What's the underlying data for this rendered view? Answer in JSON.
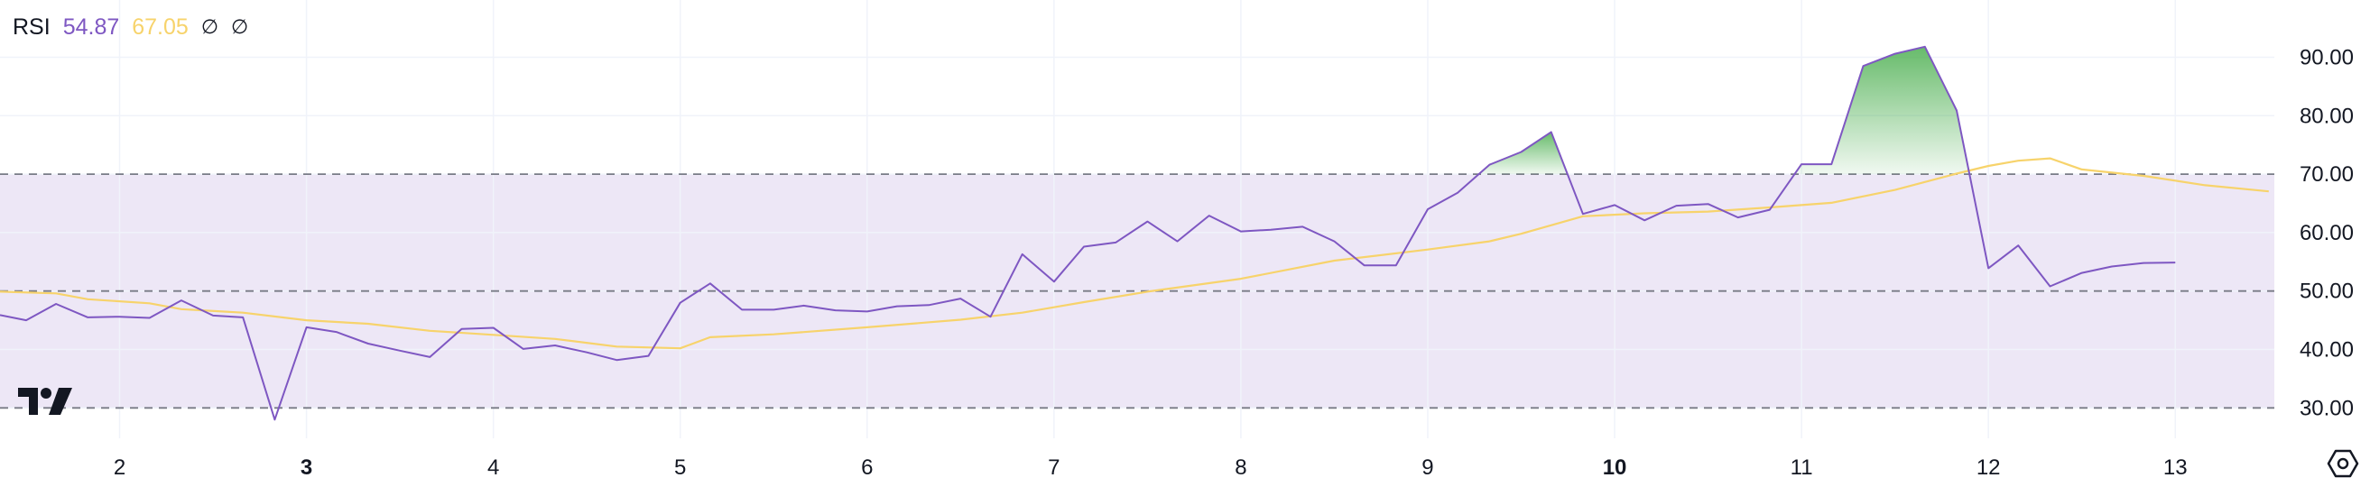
{
  "legend": {
    "name": "RSI",
    "rsi_value": "54.87",
    "ma_value": "67.05",
    "na1": "∅",
    "na2": "∅"
  },
  "icons": {
    "logo": "tradingview-logo-icon",
    "settings": "settings-icon"
  },
  "colors": {
    "rsi": "#7e57c2",
    "ma": "#f7d36b",
    "band": "#ede7f6",
    "overbought_fill": "#4caf50",
    "grid": "#f0f3fa",
    "dash": "#787b86"
  },
  "chart_data": {
    "type": "line",
    "title": "RSI",
    "ylim": [
      24.8,
      99.8
    ],
    "xlim": [
      1.36,
      13.53
    ],
    "y_ticks": [
      "30.00",
      "40.00",
      "50.00",
      "60.00",
      "70.00",
      "80.00",
      "90.00"
    ],
    "x_ticks": [
      {
        "label": "2",
        "x": 2,
        "bold": false
      },
      {
        "label": "3",
        "x": 3,
        "bold": true
      },
      {
        "label": "4",
        "x": 4,
        "bold": false
      },
      {
        "label": "5",
        "x": 5,
        "bold": false
      },
      {
        "label": "6",
        "x": 6,
        "bold": false
      },
      {
        "label": "7",
        "x": 7,
        "bold": false
      },
      {
        "label": "8",
        "x": 8,
        "bold": false
      },
      {
        "label": "9",
        "x": 9,
        "bold": false
      },
      {
        "label": "10",
        "x": 10,
        "bold": true
      },
      {
        "label": "11",
        "x": 11,
        "bold": false
      },
      {
        "label": "12",
        "x": 12,
        "bold": false
      },
      {
        "label": "13",
        "x": 13,
        "bold": false
      }
    ],
    "bands": {
      "upper": 70,
      "middle": 50,
      "lower": 30
    },
    "grid": true,
    "series": [
      {
        "key": "rsi",
        "color": "#7e57c2",
        "points": [
          [
            1.36,
            45.9
          ],
          [
            1.5,
            45.0
          ],
          [
            1.66,
            47.8
          ],
          [
            1.83,
            45.5
          ],
          [
            2.0,
            45.6
          ],
          [
            2.16,
            45.4
          ],
          [
            2.33,
            48.4
          ],
          [
            2.5,
            45.8
          ],
          [
            2.66,
            45.5
          ],
          [
            2.83,
            28.0
          ],
          [
            3.0,
            43.8
          ],
          [
            3.16,
            43.0
          ],
          [
            3.33,
            41.0
          ],
          [
            3.5,
            39.8
          ],
          [
            3.66,
            38.7
          ],
          [
            3.83,
            43.5
          ],
          [
            4.0,
            43.7
          ],
          [
            4.16,
            40.1
          ],
          [
            4.33,
            40.7
          ],
          [
            4.5,
            39.5
          ],
          [
            4.66,
            38.2
          ],
          [
            4.83,
            38.9
          ],
          [
            5.0,
            48.0
          ],
          [
            5.16,
            51.3
          ],
          [
            5.33,
            46.8
          ],
          [
            5.5,
            46.8
          ],
          [
            5.66,
            47.5
          ],
          [
            5.83,
            46.7
          ],
          [
            6.0,
            46.5
          ],
          [
            6.16,
            47.4
          ],
          [
            6.33,
            47.6
          ],
          [
            6.5,
            48.7
          ],
          [
            6.66,
            45.6
          ],
          [
            6.83,
            56.3
          ],
          [
            7.0,
            51.6
          ],
          [
            7.16,
            57.6
          ],
          [
            7.33,
            58.3
          ],
          [
            7.5,
            61.9
          ],
          [
            7.66,
            58.5
          ],
          [
            7.83,
            62.9
          ],
          [
            8.0,
            60.2
          ],
          [
            8.16,
            60.5
          ],
          [
            8.33,
            61.0
          ],
          [
            8.5,
            58.5
          ],
          [
            8.66,
            54.4
          ],
          [
            8.83,
            54.4
          ],
          [
            9.0,
            64.0
          ],
          [
            9.16,
            66.8
          ],
          [
            9.33,
            71.6
          ],
          [
            9.5,
            73.8
          ],
          [
            9.66,
            77.2
          ],
          [
            9.83,
            63.2
          ],
          [
            10.0,
            64.7
          ],
          [
            10.16,
            62.1
          ],
          [
            10.33,
            64.6
          ],
          [
            10.5,
            64.9
          ],
          [
            10.66,
            62.6
          ],
          [
            10.83,
            63.9
          ],
          [
            11.0,
            71.7
          ],
          [
            11.16,
            71.7
          ],
          [
            11.33,
            88.5
          ],
          [
            11.5,
            90.6
          ],
          [
            11.66,
            91.8
          ],
          [
            11.83,
            80.9
          ],
          [
            12.0,
            53.9
          ],
          [
            12.16,
            57.8
          ],
          [
            12.33,
            50.8
          ],
          [
            12.5,
            53.1
          ],
          [
            12.66,
            54.2
          ],
          [
            12.83,
            54.8
          ],
          [
            13.0,
            54.87
          ]
        ]
      },
      {
        "key": "ma",
        "color": "#f7d36b",
        "points": [
          [
            1.36,
            49.9
          ],
          [
            1.66,
            49.6
          ],
          [
            1.83,
            48.6
          ],
          [
            2.16,
            47.9
          ],
          [
            2.33,
            46.9
          ],
          [
            2.66,
            46.3
          ],
          [
            3.0,
            45.0
          ],
          [
            3.33,
            44.4
          ],
          [
            3.66,
            43.2
          ],
          [
            4.0,
            42.5
          ],
          [
            4.33,
            41.8
          ],
          [
            4.66,
            40.5
          ],
          [
            5.0,
            40.2
          ],
          [
            5.16,
            42.1
          ],
          [
            5.5,
            42.6
          ],
          [
            6.0,
            43.8
          ],
          [
            6.5,
            45.1
          ],
          [
            6.83,
            46.3
          ],
          [
            7.16,
            48.1
          ],
          [
            7.5,
            49.9
          ],
          [
            8.0,
            52.1
          ],
          [
            8.5,
            55.2
          ],
          [
            9.0,
            57.1
          ],
          [
            9.33,
            58.5
          ],
          [
            9.5,
            59.8
          ],
          [
            9.83,
            62.8
          ],
          [
            10.16,
            63.3
          ],
          [
            10.5,
            63.6
          ],
          [
            10.83,
            64.3
          ],
          [
            11.16,
            65.1
          ],
          [
            11.5,
            67.3
          ],
          [
            11.83,
            70.1
          ],
          [
            12.0,
            71.4
          ],
          [
            12.16,
            72.3
          ],
          [
            12.33,
            72.7
          ],
          [
            12.5,
            70.8
          ],
          [
            12.83,
            69.7
          ],
          [
            13.16,
            68.1
          ],
          [
            13.5,
            67.05
          ]
        ]
      }
    ]
  }
}
